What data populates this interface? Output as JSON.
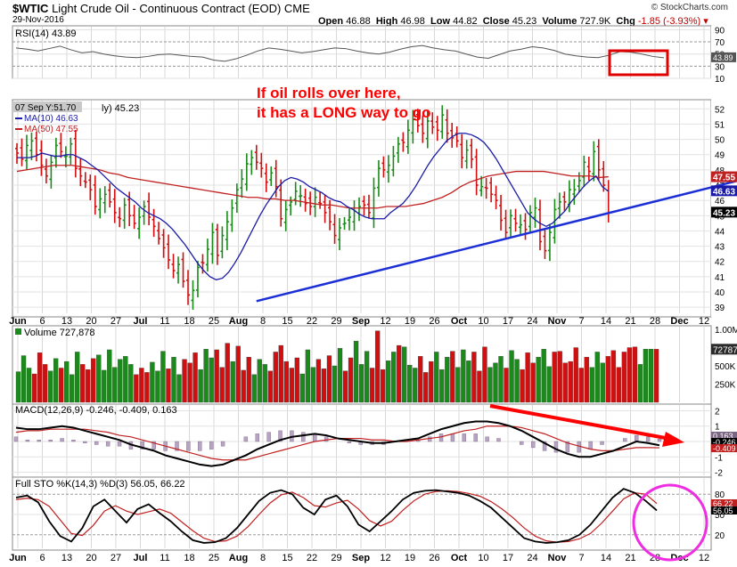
{
  "header": {
    "symbol": "$WTIC",
    "title": "Light Crude Oil - Continuous Contract (EOD)",
    "exchange": "CME",
    "date": "29-Nov-2016",
    "open_label": "Open",
    "open": "46.88",
    "high_label": "High",
    "high": "46.98",
    "low_label": "Low",
    "low": "44.82",
    "close_label": "Close",
    "close": "45.23",
    "volume_label": "Volume",
    "volume": "727.9K",
    "chg_label": "Chg",
    "chg": "-1.85 (-3.93%)",
    "logo": "© StockCharts.com"
  },
  "annotation": {
    "line1": "If oil rolls over here,",
    "line2": "it has a LONG way to go"
  },
  "colors": {
    "up": "#1a8a1a",
    "down": "#d01010",
    "ma10": "#1a1aa8",
    "ma50": "#c02020",
    "trendline": "#1c2fd6",
    "panel_bg": "#ddd4ea",
    "annot_red": "#ff0000",
    "circle": "#ee2ee0"
  },
  "chart_data": [
    {
      "panel": "rsi",
      "type": "line",
      "label": "RSI(14) 43.89",
      "yticks": [
        "90",
        "70",
        "50",
        "30",
        "10"
      ],
      "ylim": [
        10,
        95
      ],
      "last_value": "43.89",
      "values": [
        60,
        58,
        55,
        59,
        63,
        57,
        52,
        54,
        50,
        47,
        45,
        44,
        46,
        49,
        50,
        48,
        46,
        45,
        40,
        38,
        42,
        48,
        55,
        60,
        58,
        55,
        52,
        54,
        57,
        60,
        59,
        55,
        52,
        50,
        53,
        58,
        62,
        64,
        60,
        57,
        55,
        50,
        45,
        43,
        49,
        55,
        58,
        62,
        60,
        56,
        50,
        47,
        45,
        44,
        48,
        54,
        53,
        50,
        46,
        43.89
      ]
    },
    {
      "panel": "price",
      "type": "candlestick",
      "legend": [
        "07 Sep Y:51.70",
        "MA(10) 46.63",
        "MA(50) 47.55"
      ],
      "overlay_text": "ly) 45.23",
      "xticks": [
        "Jun",
        "6",
        "13",
        "20",
        "27",
        "Jul",
        "11",
        "18",
        "25",
        "Aug",
        "8",
        "15",
        "22",
        "29",
        "Sep",
        "12",
        "19",
        "26",
        "Oct",
        "10",
        "17",
        "24",
        "Nov",
        "7",
        "14",
        "21",
        "28",
        "Dec",
        "12"
      ],
      "yticks": [
        "52",
        "51",
        "50",
        "49",
        "48",
        "47",
        "46",
        "45",
        "44",
        "43",
        "42",
        "41",
        "40",
        "39"
      ],
      "ylim": [
        38.6,
        52.6
      ],
      "price_labels": [
        "47.55",
        "46.63",
        "45.23"
      ],
      "trendline": {
        "from": [
          49,
          39.4
        ],
        "to": [
          190,
          50.7
        ]
      },
      "close": [
        49.1,
        48.7,
        49.6,
        49.9,
        49.0,
        48.3,
        47.6,
        48.5,
        49.6,
        49.2,
        48.9,
        49.7,
        48.1,
        47.6,
        47.2,
        46.7,
        45.6,
        46.1,
        46.4,
        45.9,
        45.2,
        44.8,
        45.7,
        45.0,
        44.5,
        44.9,
        45.6,
        44.9,
        44.3,
        43.5,
        42.9,
        42.1,
        41.4,
        41.8,
        40.7,
        39.8,
        40.1,
        41.6,
        41.9,
        42.8,
        43.9,
        42.4,
        43.7,
        44.6,
        45.5,
        46.7,
        47.4,
        48.4,
        48.8,
        48.5,
        48.1,
        47.2,
        47.8,
        46.9,
        44.8,
        45.4,
        45.9,
        46.6,
        46.3,
        45.8,
        45.6,
        46.2,
        45.8,
        45.2,
        44.6,
        43.7,
        44.2,
        44.5,
        44.9,
        45.3,
        45.6,
        45.7,
        45.2,
        46.8,
        48.1,
        48.0,
        48.3,
        48.9,
        49.7,
        49.8,
        50.6,
        51.3,
        50.9,
        50.4,
        51.2,
        50.8,
        50.6,
        51.6,
        50.4,
        50.1,
        49.9,
        48.8,
        49.3,
        48.7,
        47.0,
        46.9,
        46.8,
        46.4,
        46.0,
        44.7,
        43.9,
        45.0,
        44.5,
        44.4,
        44.1,
        45.2,
        45.5,
        43.3,
        42.7,
        43.9,
        45.4,
        45.9,
        45.9,
        46.7,
        46.7,
        47.3,
        48.5,
        47.9,
        49.2,
        48.0,
        47.0,
        45.2
      ],
      "ma10": [
        48.8,
        48.8,
        48.8,
        48.9,
        49.1,
        49.0,
        48.9,
        48.9,
        49.0,
        49.0,
        48.8,
        48.6,
        48.3,
        48.0,
        47.6,
        47.2,
        46.8,
        46.5,
        46.2,
        45.9,
        45.5,
        45.2,
        45.0,
        44.8,
        44.5,
        44.1,
        43.6,
        43.1,
        42.5,
        41.9,
        41.4,
        41.0,
        40.8,
        40.9,
        41.3,
        41.9,
        42.6,
        43.4,
        44.2,
        45.0,
        45.7,
        46.3,
        46.9,
        47.3,
        47.5,
        47.4,
        47.2,
        46.9,
        46.7,
        46.5,
        46.2,
        46.0,
        45.9,
        45.6,
        45.4,
        45.1,
        44.9,
        44.8,
        44.8,
        44.8,
        45.2,
        45.5,
        45.8,
        46.3,
        46.9,
        47.6,
        48.3,
        48.9,
        49.4,
        49.9,
        50.2,
        50.4,
        50.4,
        50.3,
        50.1,
        49.8,
        49.3,
        48.7,
        48.0,
        47.3,
        46.6,
        45.9,
        45.2,
        44.8,
        44.5,
        44.3,
        44.5,
        44.9,
        45.3,
        45.9,
        46.4,
        46.9,
        47.3,
        47.6,
        46.9,
        46.6
      ],
      "ma50": [
        47.9,
        48.0,
        48.1,
        48.2,
        48.3,
        48.3,
        48.3,
        48.2,
        48.1,
        48.0,
        47.8,
        47.7,
        47.5,
        47.4,
        47.3,
        47.2,
        47.1,
        47.0,
        46.9,
        46.8,
        46.7,
        46.6,
        46.5,
        46.4,
        46.3,
        46.2,
        46.2,
        46.1,
        46.1,
        46.0,
        46.0,
        45.9,
        45.8,
        45.7,
        45.7,
        45.6,
        45.5,
        45.5,
        45.5,
        45.5,
        45.6,
        45.6,
        45.6,
        45.7,
        45.8,
        46.0,
        46.2,
        46.5,
        46.9,
        47.2,
        47.4,
        47.6,
        47.7,
        47.8,
        47.9,
        47.9,
        47.9,
        47.9,
        47.8,
        47.7,
        47.6,
        47.6,
        47.6,
        47.5,
        47.55
      ]
    },
    {
      "panel": "volume",
      "type": "bar",
      "label": "Volume 727,878",
      "yticks": [
        "1.00M",
        "727878",
        "500K",
        "250K"
      ],
      "ylim": [
        0,
        1000000
      ],
      "values": [
        420,
        640,
        470,
        390,
        680,
        520,
        430,
        600,
        470,
        560,
        380,
        690,
        520,
        450,
        600,
        650,
        440,
        720,
        480,
        590,
        630,
        520,
        380,
        470,
        410,
        550,
        430,
        700,
        460,
        620,
        380,
        590,
        540,
        680,
        450,
        730,
        610,
        720,
        480,
        810,
        560,
        770,
        440,
        620,
        380,
        590,
        520,
        430,
        690,
        780,
        560,
        470,
        610,
        390,
        720,
        480,
        590,
        460,
        640,
        500,
        740,
        430,
        610,
        840,
        520,
        700,
        470,
        980,
        450,
        570,
        690,
        780,
        760,
        510,
        470,
        630,
        410,
        560,
        690,
        450,
        620,
        700,
        480,
        720,
        570,
        690,
        430,
        760,
        480,
        540,
        630,
        470,
        710,
        590,
        450,
        680,
        540,
        620,
        730,
        490,
        690,
        700,
        540,
        560,
        750,
        470,
        620,
        480,
        690,
        540,
        630,
        710,
        480,
        690,
        750,
        760,
        520,
        730,
        730,
        728
      ],
      "last_label": "727878"
    },
    {
      "panel": "macd",
      "type": "line",
      "label": "MACD(12,26,9) -0.246, -0.409, 0.163",
      "yticks": [
        "2",
        "1",
        "0",
        "-1",
        "-2"
      ],
      "ylim": [
        -2.2,
        2.2
      ],
      "value_labels": [
        "0.163",
        "-0.246",
        "-0.409"
      ],
      "macd": [
        0.9,
        0.8,
        0.8,
        0.9,
        1.0,
        0.9,
        0.7,
        0.5,
        0.3,
        0.1,
        -0.2,
        -0.4,
        -0.6,
        -0.9,
        -1.1,
        -1.3,
        -1.5,
        -1.6,
        -1.5,
        -1.2,
        -0.9,
        -0.5,
        -0.2,
        0.1,
        0.3,
        0.4,
        0.5,
        0.4,
        0.2,
        0.1,
        0.0,
        -0.1,
        -0.1,
        0.0,
        0.1,
        0.2,
        0.5,
        0.8,
        1.0,
        1.2,
        1.3,
        1.3,
        1.2,
        1.0,
        0.7,
        0.3,
        -0.1,
        -0.5,
        -0.8,
        -1.0,
        -1.0,
        -0.8,
        -0.6,
        -0.3,
        0.0,
        -0.1,
        -0.246
      ],
      "signal": [
        0.6,
        0.7,
        0.7,
        0.8,
        0.8,
        0.8,
        0.8,
        0.7,
        0.6,
        0.4,
        0.3,
        0.1,
        -0.1,
        -0.3,
        -0.5,
        -0.7,
        -0.9,
        -1.1,
        -1.2,
        -1.2,
        -1.2,
        -1.0,
        -0.8,
        -0.6,
        -0.4,
        -0.2,
        0.0,
        0.1,
        0.2,
        0.2,
        0.2,
        0.1,
        0.1,
        0.0,
        0.0,
        0.1,
        0.2,
        0.3,
        0.5,
        0.7,
        0.8,
        1.0,
        1.0,
        1.0,
        0.9,
        0.7,
        0.5,
        0.2,
        -0.1,
        -0.3,
        -0.5,
        -0.6,
        -0.6,
        -0.5,
        -0.4,
        -0.4,
        -0.409
      ],
      "histogram": [
        0.3,
        0.1,
        0.1,
        0.1,
        0.2,
        0.1,
        -0.1,
        -0.2,
        -0.3,
        -0.3,
        -0.5,
        -0.5,
        -0.5,
        -0.6,
        -0.6,
        -0.6,
        -0.6,
        -0.5,
        -0.3,
        0.0,
        0.3,
        0.5,
        0.6,
        0.7,
        0.7,
        0.6,
        0.5,
        0.3,
        0.0,
        -0.1,
        -0.2,
        -0.2,
        -0.2,
        0.0,
        0.1,
        0.1,
        0.3,
        0.5,
        0.5,
        0.5,
        0.5,
        0.3,
        0.2,
        0.0,
        -0.2,
        -0.4,
        -0.6,
        -0.7,
        -0.7,
        -0.7,
        -0.5,
        -0.2,
        0.0,
        0.2,
        0.4,
        0.3,
        0.163
      ]
    },
    {
      "panel": "sto",
      "type": "line",
      "label": "Full STO %K(14,3) %D(3) 56.05, 66.22",
      "yticks": [
        "80",
        "50",
        "20"
      ],
      "ylim": [
        0,
        100
      ],
      "value_labels": [
        "66.22",
        "56.05"
      ],
      "k": [
        75,
        78,
        68,
        40,
        18,
        10,
        30,
        62,
        72,
        55,
        38,
        58,
        65,
        52,
        40,
        25,
        12,
        8,
        9,
        15,
        30,
        50,
        70,
        82,
        86,
        80,
        60,
        50,
        72,
        78,
        62,
        35,
        25,
        40,
        55,
        72,
        82,
        85,
        86,
        84,
        82,
        78,
        70,
        60,
        45,
        30,
        15,
        10,
        8,
        9,
        12,
        20,
        35,
        55,
        75,
        88,
        82,
        70,
        56.05
      ],
      "d": [
        72,
        74,
        72,
        62,
        42,
        22,
        19,
        34,
        55,
        63,
        55,
        50,
        54,
        58,
        52,
        39,
        26,
        15,
        10,
        11,
        18,
        32,
        50,
        67,
        79,
        83,
        75,
        63,
        61,
        67,
        71,
        58,
        41,
        33,
        40,
        56,
        70,
        80,
        84,
        85,
        84,
        81,
        77,
        69,
        58,
        45,
        30,
        18,
        11,
        9,
        10,
        14,
        22,
        37,
        55,
        73,
        82,
        80,
        66.22
      ]
    }
  ]
}
